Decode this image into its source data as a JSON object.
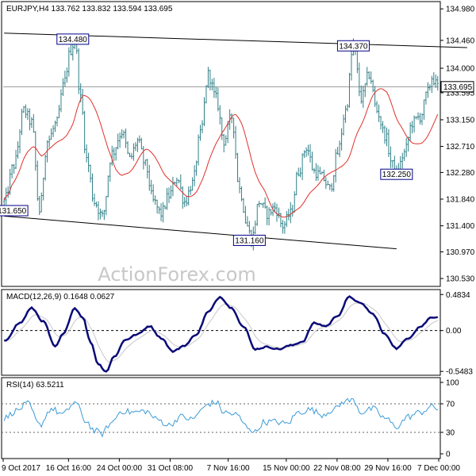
{
  "colors": {
    "bars": "#2f7f87",
    "ma": "#e0302a",
    "macd": "#0a0a78",
    "signal": "#c8c8c8",
    "rsi": "#3a9bd8",
    "trend": "#000000",
    "annotation_box": "#00008b",
    "current_box": "#000000"
  },
  "watermark": "ActionForex.com",
  "chart_data": [
    {
      "type": "ohlc",
      "title": "EURJPY,H4 133.762 133.832 133.594 133.695",
      "ylim": [
        130.4,
        135.1
      ],
      "y_ticks": [
        "134.980",
        "134.460",
        "134.000",
        "133.595",
        "133.150",
        "132.710",
        "132.280",
        "131.840",
        "131.400",
        "130.970",
        "130.530"
      ],
      "y_tick_values": [
        134.98,
        134.46,
        134.0,
        133.595,
        133.15,
        132.71,
        132.28,
        131.84,
        131.4,
        130.97,
        130.53
      ],
      "current_price": "133.695",
      "current_price_value": 133.695,
      "annotations": [
        {
          "text": "134.480",
          "value": 134.48,
          "bar": 35
        },
        {
          "text": "134.370",
          "value": 134.37,
          "bar": 178
        },
        {
          "text": "132.250",
          "value": 132.25,
          "bar": 200
        },
        {
          "text": "131.650",
          "value": 131.65,
          "bar": 4
        },
        {
          "text": "131.160",
          "value": 131.16,
          "bar": 125
        }
      ],
      "trendlines": [
        {
          "from": [
            0,
            134.58
          ],
          "to": [
            236,
            134.34
          ]
        },
        {
          "from": [
            0,
            131.56
          ],
          "to": [
            200,
            131.02
          ]
        }
      ],
      "path_anchors": [
        [
          0,
          131.8
        ],
        [
          5,
          132.4
        ],
        [
          10,
          133.3
        ],
        [
          14,
          133.1
        ],
        [
          18,
          131.65
        ],
        [
          22,
          132.8
        ],
        [
          27,
          133.1
        ],
        [
          30,
          133.7
        ],
        [
          34,
          134.3
        ],
        [
          36,
          134.48
        ],
        [
          39,
          133.5
        ],
        [
          42,
          132.5
        ],
        [
          46,
          131.8
        ],
        [
          50,
          131.55
        ],
        [
          55,
          132.6
        ],
        [
          60,
          132.95
        ],
        [
          64,
          132.5
        ],
        [
          68,
          132.8
        ],
        [
          72,
          132.4
        ],
        [
          76,
          131.8
        ],
        [
          80,
          131.6
        ],
        [
          84,
          131.9
        ],
        [
          88,
          132.2
        ],
        [
          92,
          131.8
        ],
        [
          96,
          132.1
        ],
        [
          100,
          132.9
        ],
        [
          104,
          133.9
        ],
        [
          108,
          133.5
        ],
        [
          112,
          132.8
        ],
        [
          116,
          133.2
        ],
        [
          120,
          132.0
        ],
        [
          124,
          131.4
        ],
        [
          126,
          131.16
        ],
        [
          130,
          131.8
        ],
        [
          134,
          131.6
        ],
        [
          138,
          131.7
        ],
        [
          142,
          131.4
        ],
        [
          146,
          131.6
        ],
        [
          150,
          132.3
        ],
        [
          154,
          132.7
        ],
        [
          158,
          132.3
        ],
        [
          162,
          132.2
        ],
        [
          166,
          132.0
        ],
        [
          170,
          132.6
        ],
        [
          174,
          133.3
        ],
        [
          178,
          134.37
        ],
        [
          182,
          133.5
        ],
        [
          186,
          133.9
        ],
        [
          190,
          133.3
        ],
        [
          194,
          132.9
        ],
        [
          198,
          132.4
        ],
        [
          200,
          132.25
        ],
        [
          204,
          132.6
        ],
        [
          208,
          133.1
        ],
        [
          212,
          133.2
        ],
        [
          216,
          133.6
        ],
        [
          218,
          133.85
        ],
        [
          221,
          133.7
        ]
      ],
      "ma_period": 20
    },
    {
      "type": "line",
      "title": "MACD(12,26,9) 0.1648 0.0627",
      "y_ticks": [
        "0.4834",
        "0.00",
        "-0.5483"
      ],
      "y_tick_values": [
        0.4834,
        0.0,
        -0.5483
      ],
      "ylim": [
        -0.6,
        0.55
      ],
      "value_anchors": [
        [
          0,
          -0.14
        ],
        [
          8,
          0.1
        ],
        [
          14,
          0.3
        ],
        [
          20,
          0.12
        ],
        [
          26,
          -0.22
        ],
        [
          30,
          -0.05
        ],
        [
          36,
          0.3
        ],
        [
          40,
          0.18
        ],
        [
          44,
          -0.15
        ],
        [
          48,
          -0.45
        ],
        [
          52,
          -0.55
        ],
        [
          56,
          -0.35
        ],
        [
          62,
          -0.12
        ],
        [
          68,
          -0.05
        ],
        [
          74,
          0.06
        ],
        [
          80,
          -0.1
        ],
        [
          86,
          -0.28
        ],
        [
          92,
          -0.2
        ],
        [
          98,
          -0.05
        ],
        [
          104,
          0.25
        ],
        [
          110,
          0.45
        ],
        [
          116,
          0.3
        ],
        [
          122,
          0.05
        ],
        [
          128,
          -0.25
        ],
        [
          134,
          -0.22
        ],
        [
          140,
          -0.25
        ],
        [
          146,
          -0.2
        ],
        [
          152,
          -0.15
        ],
        [
          158,
          0.1
        ],
        [
          164,
          0.06
        ],
        [
          170,
          0.2
        ],
        [
          176,
          0.45
        ],
        [
          182,
          0.36
        ],
        [
          188,
          0.22
        ],
        [
          194,
          -0.05
        ],
        [
          200,
          -0.24
        ],
        [
          206,
          -0.1
        ],
        [
          212,
          0.05
        ],
        [
          218,
          0.18
        ],
        [
          221,
          0.18
        ]
      ],
      "signal_period": 9
    },
    {
      "type": "line",
      "title": "RSI(14) 63.5211",
      "y_ticks": [
        "100",
        "70",
        "30",
        "0"
      ],
      "y_tick_values": [
        100,
        70,
        30,
        0
      ],
      "ylim": [
        0,
        100
      ],
      "levels": [
        70,
        30
      ],
      "value_anchors": [
        [
          0,
          50
        ],
        [
          6,
          60
        ],
        [
          12,
          70
        ],
        [
          18,
          40
        ],
        [
          24,
          63
        ],
        [
          30,
          55
        ],
        [
          36,
          72
        ],
        [
          42,
          45
        ],
        [
          46,
          32
        ],
        [
          50,
          28
        ],
        [
          54,
          42
        ],
        [
          60,
          60
        ],
        [
          66,
          58
        ],
        [
          72,
          60
        ],
        [
          78,
          48
        ],
        [
          84,
          40
        ],
        [
          90,
          52
        ],
        [
          96,
          48
        ],
        [
          100,
          60
        ],
        [
          104,
          70
        ],
        [
          108,
          72
        ],
        [
          112,
          58
        ],
        [
          118,
          55
        ],
        [
          124,
          38
        ],
        [
          128,
          30
        ],
        [
          132,
          44
        ],
        [
          138,
          45
        ],
        [
          144,
          42
        ],
        [
          150,
          58
        ],
        [
          156,
          62
        ],
        [
          162,
          55
        ],
        [
          168,
          62
        ],
        [
          174,
          74
        ],
        [
          178,
          75
        ],
        [
          182,
          58
        ],
        [
          188,
          63
        ],
        [
          194,
          50
        ],
        [
          200,
          38
        ],
        [
          206,
          52
        ],
        [
          212,
          58
        ],
        [
          218,
          66
        ],
        [
          221,
          63
        ]
      ]
    }
  ],
  "x_axis": {
    "labels": [
      "9 Oct 2017",
      "16 Oct 16:00",
      "24 Oct 00:00",
      "31 Oct 08:00",
      "7 Nov 16:00",
      "15 Nov 00:00",
      "22 Nov 08:00",
      "29 Nov 16:00",
      "7 Dec 00:00"
    ],
    "label_bars": [
      0,
      36,
      64,
      92,
      124,
      156,
      184,
      212,
      240
    ]
  }
}
